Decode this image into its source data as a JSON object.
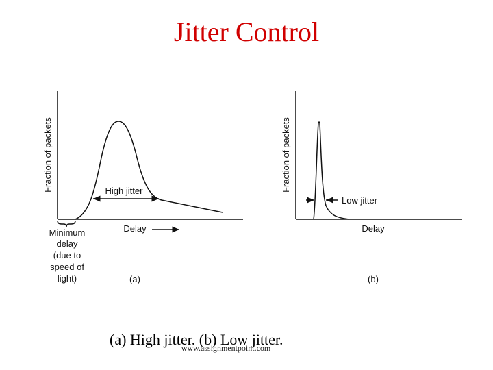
{
  "title": "Jitter Control",
  "panels": [
    {
      "y_label": "Fraction of packets",
      "x_label": "Delay",
      "annotation": "High jitter",
      "tag": "(a)",
      "note_lines": [
        "Minimum",
        "delay",
        "(due to",
        "speed of",
        "light)"
      ]
    },
    {
      "y_label": "Fraction of packets",
      "x_label": "Delay",
      "annotation": "Low jitter",
      "tag": "(b)"
    }
  ],
  "caption": "(a) High jitter. (b) Low jitter.",
  "watermark": "www.assignmentpoint.com"
}
